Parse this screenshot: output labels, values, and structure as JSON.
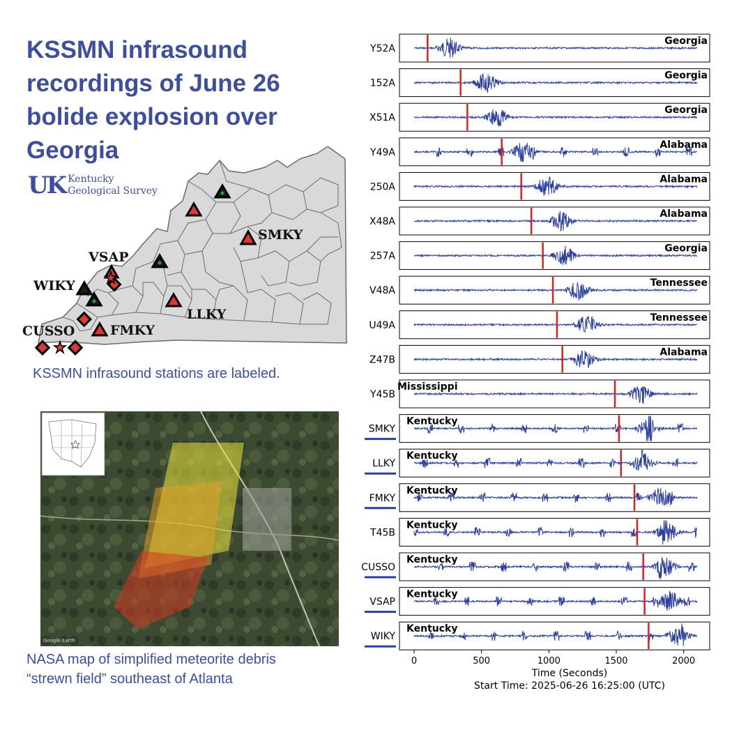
{
  "header": {
    "title": "KSSMN infrasound recordings of June 26 bolide explosion over Georgia",
    "logo_mark": "UK",
    "logo_line1": "Kentucky",
    "logo_line2": "Geological Survey"
  },
  "map": {
    "caption": "KSSMN infrasound stations are labeled.",
    "station_labels": [
      "VSAP",
      "SMKY",
      "WIKY",
      "LLKY",
      "CUSSO",
      "FMKY"
    ],
    "colors": {
      "state_fill": "#d9d9dc",
      "border": "#6a6a6e",
      "marker": "#d93a35"
    }
  },
  "photo": {
    "caption_line1": "NASA map of simplified meteorite debris",
    "caption_line2": "“strewn field” southeast of Atlanta",
    "watermark": "Google Earth"
  },
  "chart_data": {
    "type": "line",
    "title": "",
    "xlabel": "Time (Seconds)",
    "start_time_label": "Start Time:  2025-06-26 16:25:00 (UTC)",
    "xlim": [
      0,
      2100
    ],
    "xticks": [
      0,
      500,
      1000,
      1500,
      2000
    ],
    "trace_color": "#2b3f9e",
    "arrival_color": "#e02020",
    "traces": [
      {
        "station": "Y52A",
        "region": "Georgia",
        "arrival": 100,
        "kssmn": false
      },
      {
        "station": "152A",
        "region": "Georgia",
        "arrival": 345,
        "kssmn": false
      },
      {
        "station": "X51A",
        "region": "Georgia",
        "arrival": 395,
        "kssmn": false
      },
      {
        "station": "Y49A",
        "region": "Alabama",
        "arrival": 650,
        "kssmn": false
      },
      {
        "station": "250A",
        "region": "Alabama",
        "arrival": 795,
        "kssmn": false
      },
      {
        "station": "X48A",
        "region": "Alabama",
        "arrival": 870,
        "kssmn": false
      },
      {
        "station": "257A",
        "region": "Georgia",
        "arrival": 955,
        "kssmn": false
      },
      {
        "station": "V48A",
        "region": "Tennessee",
        "arrival": 1030,
        "kssmn": false
      },
      {
        "station": "U49A",
        "region": "Tennessee",
        "arrival": 1060,
        "kssmn": false
      },
      {
        "station": "Z47B",
        "region": "Alabama",
        "arrival": 1100,
        "kssmn": false
      },
      {
        "station": "Y45B",
        "region": "Mississippi",
        "arrival": 1490,
        "kssmn": false
      },
      {
        "station": "SMKY",
        "region": "Kentucky",
        "arrival": 1520,
        "kssmn": true
      },
      {
        "station": "LLKY",
        "region": "Kentucky",
        "arrival": 1535,
        "kssmn": true
      },
      {
        "station": "FMKY",
        "region": "Kentucky",
        "arrival": 1635,
        "kssmn": true
      },
      {
        "station": "T45B",
        "region": "Kentucky",
        "arrival": 1655,
        "kssmn": false
      },
      {
        "station": "CUSSO",
        "region": "Kentucky",
        "arrival": 1700,
        "kssmn": true
      },
      {
        "station": "VSAP",
        "region": "Kentucky",
        "arrival": 1710,
        "kssmn": true
      },
      {
        "station": "WIKY",
        "region": "Kentucky",
        "arrival": 1740,
        "kssmn": true
      }
    ]
  }
}
